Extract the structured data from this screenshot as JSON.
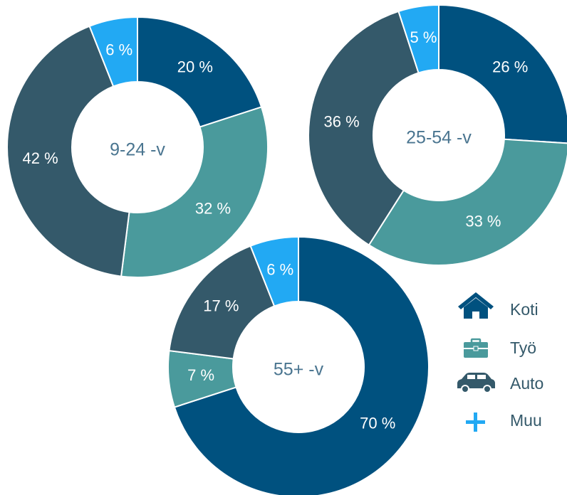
{
  "legend": [
    {
      "name": "Koti",
      "color": "#00517f"
    },
    {
      "name": "Työ",
      "color": "#4a9a9c"
    },
    {
      "name": "Auto",
      "color": "#34596a"
    },
    {
      "name": "Muu",
      "color": "#22a9f3"
    }
  ],
  "chart_data": [
    {
      "type": "donut",
      "center_label": "9-24 -v",
      "values": [
        20,
        32,
        42,
        6
      ],
      "value_labels": [
        "20 %",
        "32 %",
        "42 %",
        "6 %"
      ]
    },
    {
      "type": "donut",
      "center_label": "25-54 -v",
      "values": [
        26,
        33,
        36,
        5
      ],
      "value_labels": [
        "26 %",
        "33 %",
        "36 %",
        "5 %"
      ]
    },
    {
      "type": "donut",
      "center_label": "55+ -v",
      "values": [
        70,
        7,
        17,
        6
      ],
      "value_labels": [
        "70 %",
        "7 %",
        "17 %",
        "6 %"
      ]
    }
  ]
}
